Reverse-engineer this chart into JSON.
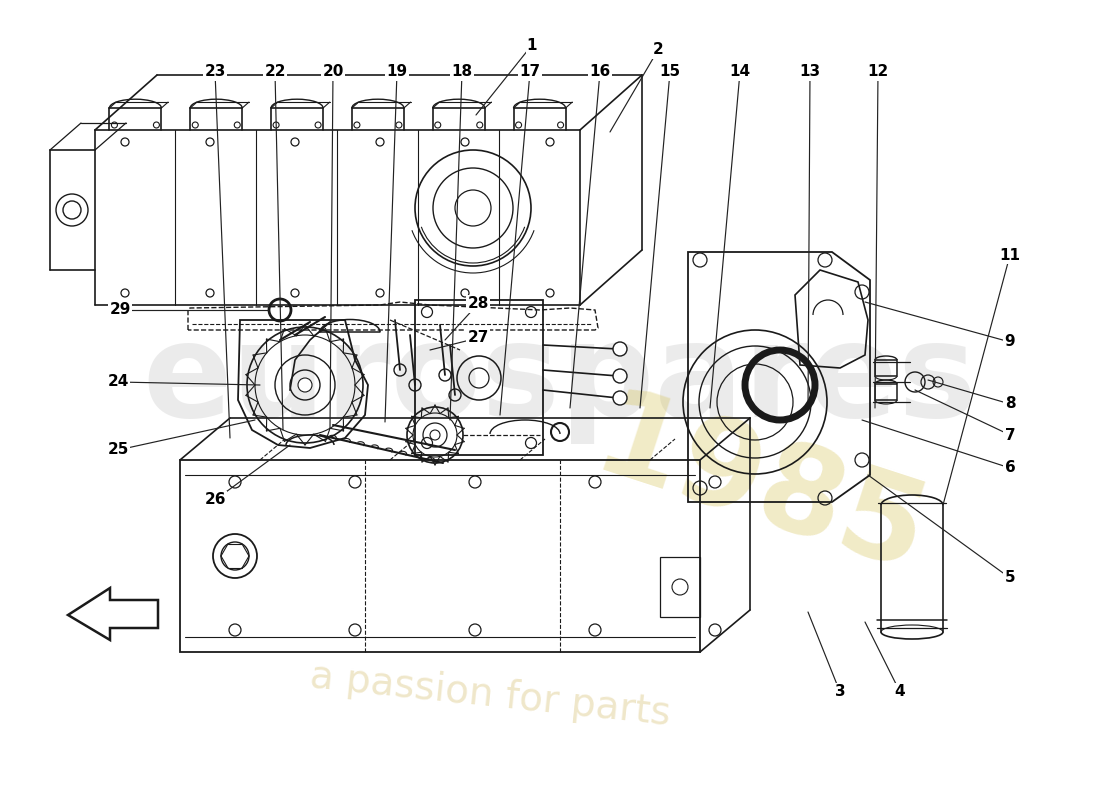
{
  "bg_color": "#ffffff",
  "lc": "#1a1a1a",
  "wm_eurospares_color": "#cccccc",
  "wm_eurospares_alpha": 0.38,
  "wm_1985_color": "#d4c050",
  "wm_1985_alpha": 0.32,
  "wm_passion_color": "#c8a840",
  "wm_passion_alpha": 0.28,
  "figsize": [
    11.0,
    8.0
  ],
  "dpi": 100
}
